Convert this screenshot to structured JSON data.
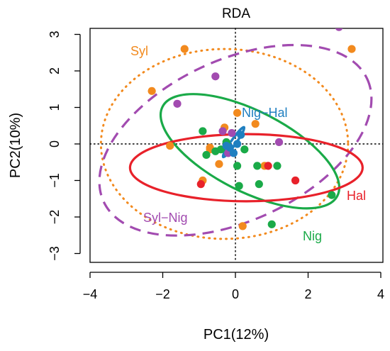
{
  "chart_data": {
    "type": "scatter",
    "title": "RDA",
    "xlabel": "PC1(12%)",
    "ylabel": "PC2(10%)",
    "xlim": [
      -4,
      4
    ],
    "ylim": [
      -3,
      3
    ],
    "xticks": [
      "−4",
      "−2",
      "0",
      "2",
      "4"
    ],
    "yticks": [
      "−3",
      "−2",
      "−1",
      "0",
      "1",
      "2",
      "3"
    ],
    "colors": {
      "Syl": "#f28a1e",
      "Nig": "#1aaa48",
      "Hal": "#e8212a",
      "Syl-Nig": "#a24bb0",
      "Nig-Hal": "#1f7fc0"
    },
    "ellipse_labels": {
      "Syl": "Syl",
      "Nig": "Nig",
      "Hal": "Hal",
      "Syl-Nig": "Syl−Nig",
      "Nig-Hal": "Nig−Hal"
    },
    "ellipses": [
      {
        "group": "Syl",
        "cx": -0.3,
        "cy": 0.0,
        "rx": 3.4,
        "ry": 2.6,
        "angle_deg": 0,
        "style": "dotted"
      },
      {
        "group": "Syl-Nig",
        "cx": 0.0,
        "cy": 0.1,
        "rx": 4.0,
        "ry": 2.2,
        "angle_deg": 25,
        "style": "dashed"
      },
      {
        "group": "Nig",
        "cx": 0.4,
        "cy": -0.2,
        "rx": 2.7,
        "ry": 1.1,
        "angle_deg": -27,
        "style": "solid"
      },
      {
        "group": "Hal",
        "cx": 0.3,
        "cy": -0.65,
        "rx": 3.2,
        "ry": 0.92,
        "angle_deg": 0,
        "style": "solid"
      },
      {
        "group": "Nig-Hal",
        "cx": -0.05,
        "cy": 0.05,
        "rx": 0.5,
        "ry": 0.07,
        "angle_deg": 55,
        "style": "solid"
      }
    ],
    "points": [
      {
        "group": "Syl",
        "x": -2.3,
        "y": 1.45
      },
      {
        "group": "Syl",
        "x": -1.4,
        "y": 2.6
      },
      {
        "group": "Syl",
        "x": 3.2,
        "y": 2.6
      },
      {
        "group": "Syl",
        "x": -1.8,
        "y": -0.05
      },
      {
        "group": "Syl",
        "x": 0.05,
        "y": 0.85
      },
      {
        "group": "Syl",
        "x": 0.55,
        "y": 0.55
      },
      {
        "group": "Syl",
        "x": -0.3,
        "y": 0.45
      },
      {
        "group": "Syl",
        "x": -0.7,
        "y": -0.15
      },
      {
        "group": "Syl",
        "x": -0.45,
        "y": -0.55
      },
      {
        "group": "Syl",
        "x": -0.9,
        "y": -1.0
      },
      {
        "group": "Syl",
        "x": 0.2,
        "y": -2.25
      },
      {
        "group": "Syl",
        "x": 0.8,
        "y": -0.6
      },
      {
        "group": "Syl",
        "x": -0.7,
        "y": -0.1
      },
      {
        "group": "Syl-Nig",
        "x": -0.55,
        "y": 1.85
      },
      {
        "group": "Syl-Nig",
        "x": -1.6,
        "y": 1.1
      },
      {
        "group": "Syl-Nig",
        "x": 2.85,
        "y": 3.2
      },
      {
        "group": "Syl-Nig",
        "x": -0.1,
        "y": 0.3
      },
      {
        "group": "Syl-Nig",
        "x": 1.2,
        "y": 0.05
      },
      {
        "group": "Syl-Nig",
        "x": -0.35,
        "y": 0.35
      },
      {
        "group": "Syl-Nig",
        "x": -0.2,
        "y": -0.25
      },
      {
        "group": "Nig",
        "x": -0.9,
        "y": 0.35
      },
      {
        "group": "Nig",
        "x": -0.55,
        "y": -0.2
      },
      {
        "group": "Nig",
        "x": -0.4,
        "y": -0.15
      },
      {
        "group": "Nig",
        "x": -0.25,
        "y": 0.05
      },
      {
        "group": "Nig",
        "x": 0.25,
        "y": -0.15
      },
      {
        "group": "Nig",
        "x": 0.05,
        "y": -0.6
      },
      {
        "group": "Nig",
        "x": 0.1,
        "y": -1.15
      },
      {
        "group": "Nig",
        "x": 0.6,
        "y": -0.6
      },
      {
        "group": "Nig",
        "x": 0.65,
        "y": -1.1
      },
      {
        "group": "Nig",
        "x": 1.15,
        "y": -0.6
      },
      {
        "group": "Nig",
        "x": 1.0,
        "y": -2.2
      },
      {
        "group": "Nig",
        "x": 2.65,
        "y": -1.4
      },
      {
        "group": "Nig",
        "x": -0.8,
        "y": -0.3
      },
      {
        "group": "Hal",
        "x": -0.95,
        "y": -1.1
      },
      {
        "group": "Hal",
        "x": 0.9,
        "y": -0.6
      },
      {
        "group": "Hal",
        "x": 1.65,
        "y": -1.0
      },
      {
        "group": "Nig-Hal",
        "x": 0.15,
        "y": 0.25
      },
      {
        "group": "Nig-Hal",
        "x": 0.05,
        "y": 0.0
      },
      {
        "group": "Nig-Hal",
        "x": -0.15,
        "y": -0.1
      },
      {
        "group": "Nig-Hal",
        "x": -0.05,
        "y": -0.25
      },
      {
        "group": "Nig-Hal",
        "x": -0.25,
        "y": -0.05
      }
    ],
    "grid": false,
    "legend": "none"
  }
}
